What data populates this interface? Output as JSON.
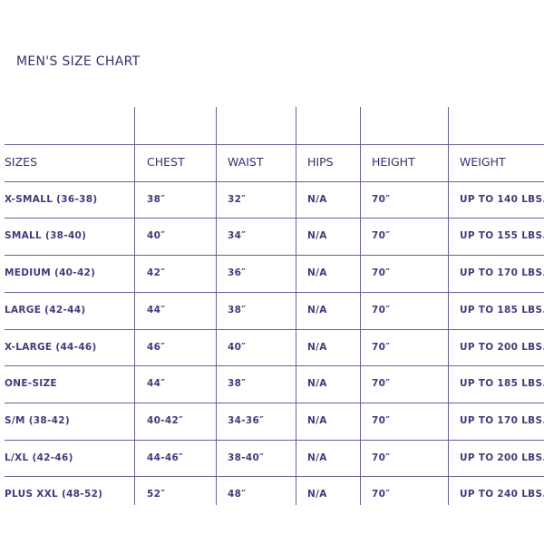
{
  "title": "MEN'S SIZE CHART",
  "headers": [
    "SIZES",
    "CHEST",
    "WAIST",
    "HIPS",
    "HEIGHT",
    "WEIGHT"
  ],
  "rows": [
    [
      "X-SMALL (36-38)",
      "38″",
      "32″",
      "N/A",
      "70″",
      "UP TO 140 LBS."
    ],
    [
      "SMALL (38-40)",
      "40″",
      "34″",
      "N/A",
      "70″",
      "UP TO 155 LBS."
    ],
    [
      "MEDIUM (40-42)",
      "42″",
      "36″",
      "N/A",
      "70″",
      "UP TO 170 LBS."
    ],
    [
      "LARGE (42-44)",
      "44″",
      "38″",
      "N/A",
      "70″",
      "UP TO 185 LBS."
    ],
    [
      "X-LARGE (44-46)",
      "46″",
      "40″",
      "N/A",
      "70″",
      "UP TO 200 LBS."
    ],
    [
      "ONE-SIZE",
      "44″",
      "38″",
      "N/A",
      "70″",
      "UP TO 185 LBS."
    ],
    [
      "S/M (38-42)",
      "40-42″",
      "34-36″",
      "N/A",
      "70″",
      "UP TO 170 LBS."
    ],
    [
      "L/XL (42-46)",
      "44-46″",
      "38-40″",
      "N/A",
      "70″",
      "UP TO 200 LBS."
    ],
    [
      "PLUS XXL (48-52)",
      "52″",
      "48″",
      "N/A",
      "70″",
      "UP TO 240 LBS."
    ]
  ]
}
